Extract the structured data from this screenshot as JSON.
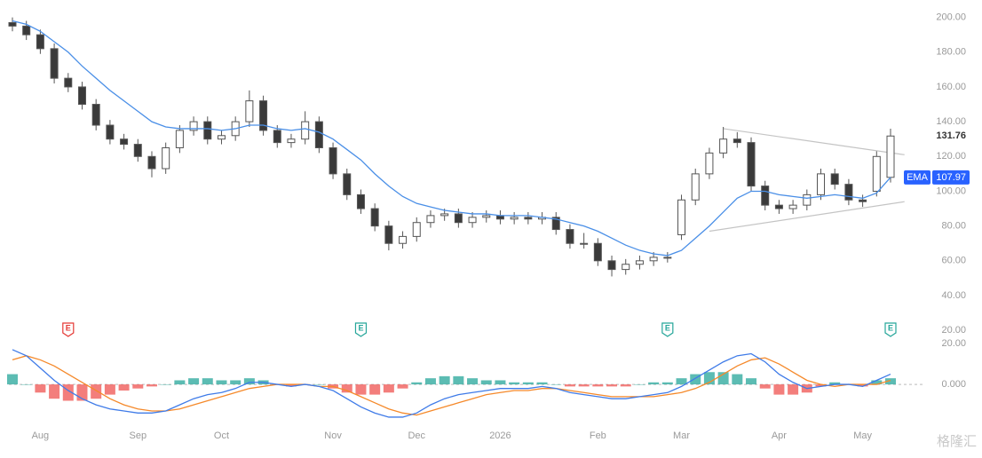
{
  "chart_data": [
    {
      "type": "candlestick",
      "ylim": [
        16,
        210
      ],
      "yticks": [
        {
          "value": 200,
          "label": "200.00"
        },
        {
          "value": 180,
          "label": "180.00"
        },
        {
          "value": 160,
          "label": "160.00"
        },
        {
          "value": 140,
          "label": "140.00"
        },
        {
          "value": 120,
          "label": "120.00"
        },
        {
          "value": 100,
          "label": "100.00"
        },
        {
          "value": 80,
          "label": "80.00"
        },
        {
          "value": 60,
          "label": "60.00"
        },
        {
          "value": 40,
          "label": "40.00"
        },
        {
          "value": 20,
          "label": "20.00"
        }
      ],
      "categories": [
        null,
        null,
        "Aug",
        null,
        null,
        null,
        null,
        null,
        null,
        "Sep",
        null,
        null,
        null,
        null,
        null,
        "Oct",
        null,
        null,
        null,
        null,
        null,
        null,
        null,
        "Nov",
        null,
        null,
        null,
        null,
        null,
        "Dec",
        null,
        null,
        null,
        null,
        null,
        "2026",
        null,
        null,
        null,
        null,
        null,
        null,
        "Feb",
        null,
        null,
        null,
        null,
        null,
        "Mar",
        null,
        null,
        null,
        null,
        null,
        null,
        "Apr",
        null,
        null,
        null,
        null,
        null,
        "May",
        null,
        null
      ],
      "open": [
        197,
        195,
        190,
        182,
        165,
        160,
        150,
        138,
        130,
        127,
        120,
        113,
        125,
        135,
        140,
        130,
        132,
        140,
        152,
        135,
        128,
        130,
        140,
        125,
        110,
        98,
        90,
        80,
        70,
        74,
        82,
        86,
        87,
        82,
        85,
        86,
        84,
        85,
        84,
        85,
        78,
        70,
        70,
        60,
        55,
        58,
        60,
        62,
        75,
        95,
        110,
        122,
        130,
        128,
        103,
        92,
        90,
        92,
        98,
        110,
        104,
        95,
        100,
        108
      ],
      "high": [
        200,
        198,
        193,
        185,
        168,
        163,
        153,
        141,
        133,
        130,
        123,
        128,
        138,
        143,
        143,
        135,
        143,
        158,
        155,
        138,
        133,
        146,
        143,
        128,
        113,
        101,
        93,
        83,
        77,
        85,
        89,
        90,
        90,
        88,
        89,
        89,
        88,
        88,
        88,
        88,
        81,
        76,
        73,
        63,
        61,
        63,
        65,
        65,
        98,
        113,
        125,
        137,
        134,
        131,
        106,
        95,
        95,
        101,
        113,
        113,
        107,
        98,
        123,
        136
      ],
      "low": [
        192,
        187,
        179,
        162,
        157,
        147,
        135,
        127,
        124,
        117,
        108,
        110,
        122,
        132,
        127,
        127,
        129,
        137,
        132,
        125,
        125,
        127,
        122,
        107,
        95,
        87,
        77,
        66,
        67,
        71,
        79,
        83,
        79,
        79,
        82,
        81,
        81,
        81,
        81,
        75,
        67,
        67,
        57,
        51,
        52,
        55,
        57,
        59,
        72,
        92,
        107,
        119,
        125,
        100,
        89,
        87,
        87,
        89,
        95,
        101,
        92,
        91,
        97,
        105
      ],
      "close": [
        195,
        190,
        182,
        165,
        160,
        150,
        138,
        130,
        127,
        120,
        113,
        125,
        135,
        140,
        130,
        132,
        140,
        152,
        135,
        128,
        130,
        140,
        125,
        110,
        98,
        90,
        80,
        70,
        74,
        82,
        86,
        87,
        82,
        85,
        86,
        84,
        85,
        84,
        85,
        78,
        70,
        70,
        60,
        55,
        58,
        60,
        62,
        62,
        95,
        110,
        122,
        130,
        128,
        103,
        92,
        90,
        92,
        98,
        110,
        104,
        95,
        94,
        120,
        131.76
      ],
      "up_color": "#ffffff",
      "down_color": "#3a3a3a",
      "edge_color": "#555555",
      "ema": {
        "name": "EMA",
        "color": "#4a8fe7",
        "values": [
          198,
          196,
          192,
          186,
          180,
          172,
          165,
          158,
          152,
          146,
          140,
          137,
          136,
          136,
          136,
          135,
          136,
          138,
          138,
          136,
          135,
          136,
          134,
          130,
          124,
          118,
          110,
          103,
          97,
          93,
          91,
          89,
          88,
          87,
          87,
          86,
          86,
          86,
          85,
          84,
          82,
          80,
          77,
          73,
          69,
          66,
          64,
          63,
          66,
          73,
          80,
          88,
          96,
          100,
          100,
          98,
          97,
          96,
          97,
          98,
          97,
          96,
          99,
          107.97
        ]
      },
      "trendlines": [
        {
          "start": [
            51,
            136
          ],
          "end": [
            64,
            121
          ]
        },
        {
          "start": [
            50,
            77
          ],
          "end": [
            64,
            94
          ]
        }
      ],
      "trendline_color": "#c4c4c4",
      "earnings": [
        {
          "label": "E",
          "index": 4,
          "color": "#e53935"
        },
        {
          "label": "E",
          "index": 25,
          "color": "#26a69a"
        },
        {
          "label": "E",
          "index": 47,
          "color": "#26a69a"
        },
        {
          "label": "E",
          "index": 63,
          "color": "#26a69a"
        }
      ],
      "watermark": "格隆汇"
    },
    {
      "type": "macd",
      "ylim": [
        -19.5,
        20
      ],
      "yticks": [
        {
          "value": 20,
          "label": "20.00"
        },
        {
          "value": 0,
          "label": "0.000"
        }
      ],
      "macd": {
        "color": "#3f7be8",
        "values": [
          17,
          14,
          8,
          2,
          -3,
          -7,
          -10,
          -12,
          -13,
          -14,
          -14,
          -13,
          -10,
          -7,
          -5,
          -4,
          -2,
          1,
          1,
          0,
          -1,
          0,
          -1,
          -3,
          -7,
          -11,
          -14,
          -16,
          -16,
          -14,
          -10,
          -7,
          -5,
          -4,
          -3,
          -2,
          -2,
          -2,
          -1,
          -2,
          -4,
          -5,
          -6,
          -7,
          -7,
          -6,
          -5,
          -4,
          -1,
          3,
          7,
          11,
          14,
          15,
          11,
          5,
          1,
          -2,
          -1,
          0,
          0,
          -1,
          2,
          5
        ]
      },
      "signal": {
        "color": "#f5892a",
        "values": [
          12,
          14,
          12,
          9,
          5,
          1,
          -3,
          -7,
          -10,
          -12,
          -13,
          -13,
          -12,
          -10,
          -8,
          -6,
          -4,
          -2,
          -1,
          0,
          0,
          0,
          -1,
          -1,
          -3,
          -6,
          -9,
          -12,
          -14,
          -15,
          -13,
          -11,
          -9,
          -7,
          -5,
          -4,
          -3,
          -3,
          -2,
          -2,
          -3,
          -4,
          -5,
          -6,
          -6,
          -6,
          -6,
          -5,
          -4,
          -2,
          1,
          5,
          9,
          12,
          13,
          10,
          6,
          2,
          0,
          -1,
          0,
          0,
          0,
          2
        ]
      },
      "histogram": {
        "up_color": "#26a69a",
        "down_color": "#ef5350",
        "values": [
          5,
          0,
          -4,
          -7,
          -8,
          -8,
          -7,
          -5,
          -3,
          -2,
          -1,
          0,
          2,
          3,
          3,
          2,
          2,
          3,
          2,
          0,
          -1,
          0,
          0,
          -2,
          -4,
          -5,
          -5,
          -4,
          -2,
          1,
          3,
          4,
          4,
          3,
          2,
          2,
          1,
          1,
          1,
          0,
          -1,
          -1,
          -1,
          -1,
          -1,
          0,
          1,
          1,
          3,
          5,
          6,
          6,
          5,
          3,
          -2,
          -5,
          -5,
          -4,
          -1,
          1,
          0,
          -1,
          2,
          3
        ]
      }
    }
  ]
}
